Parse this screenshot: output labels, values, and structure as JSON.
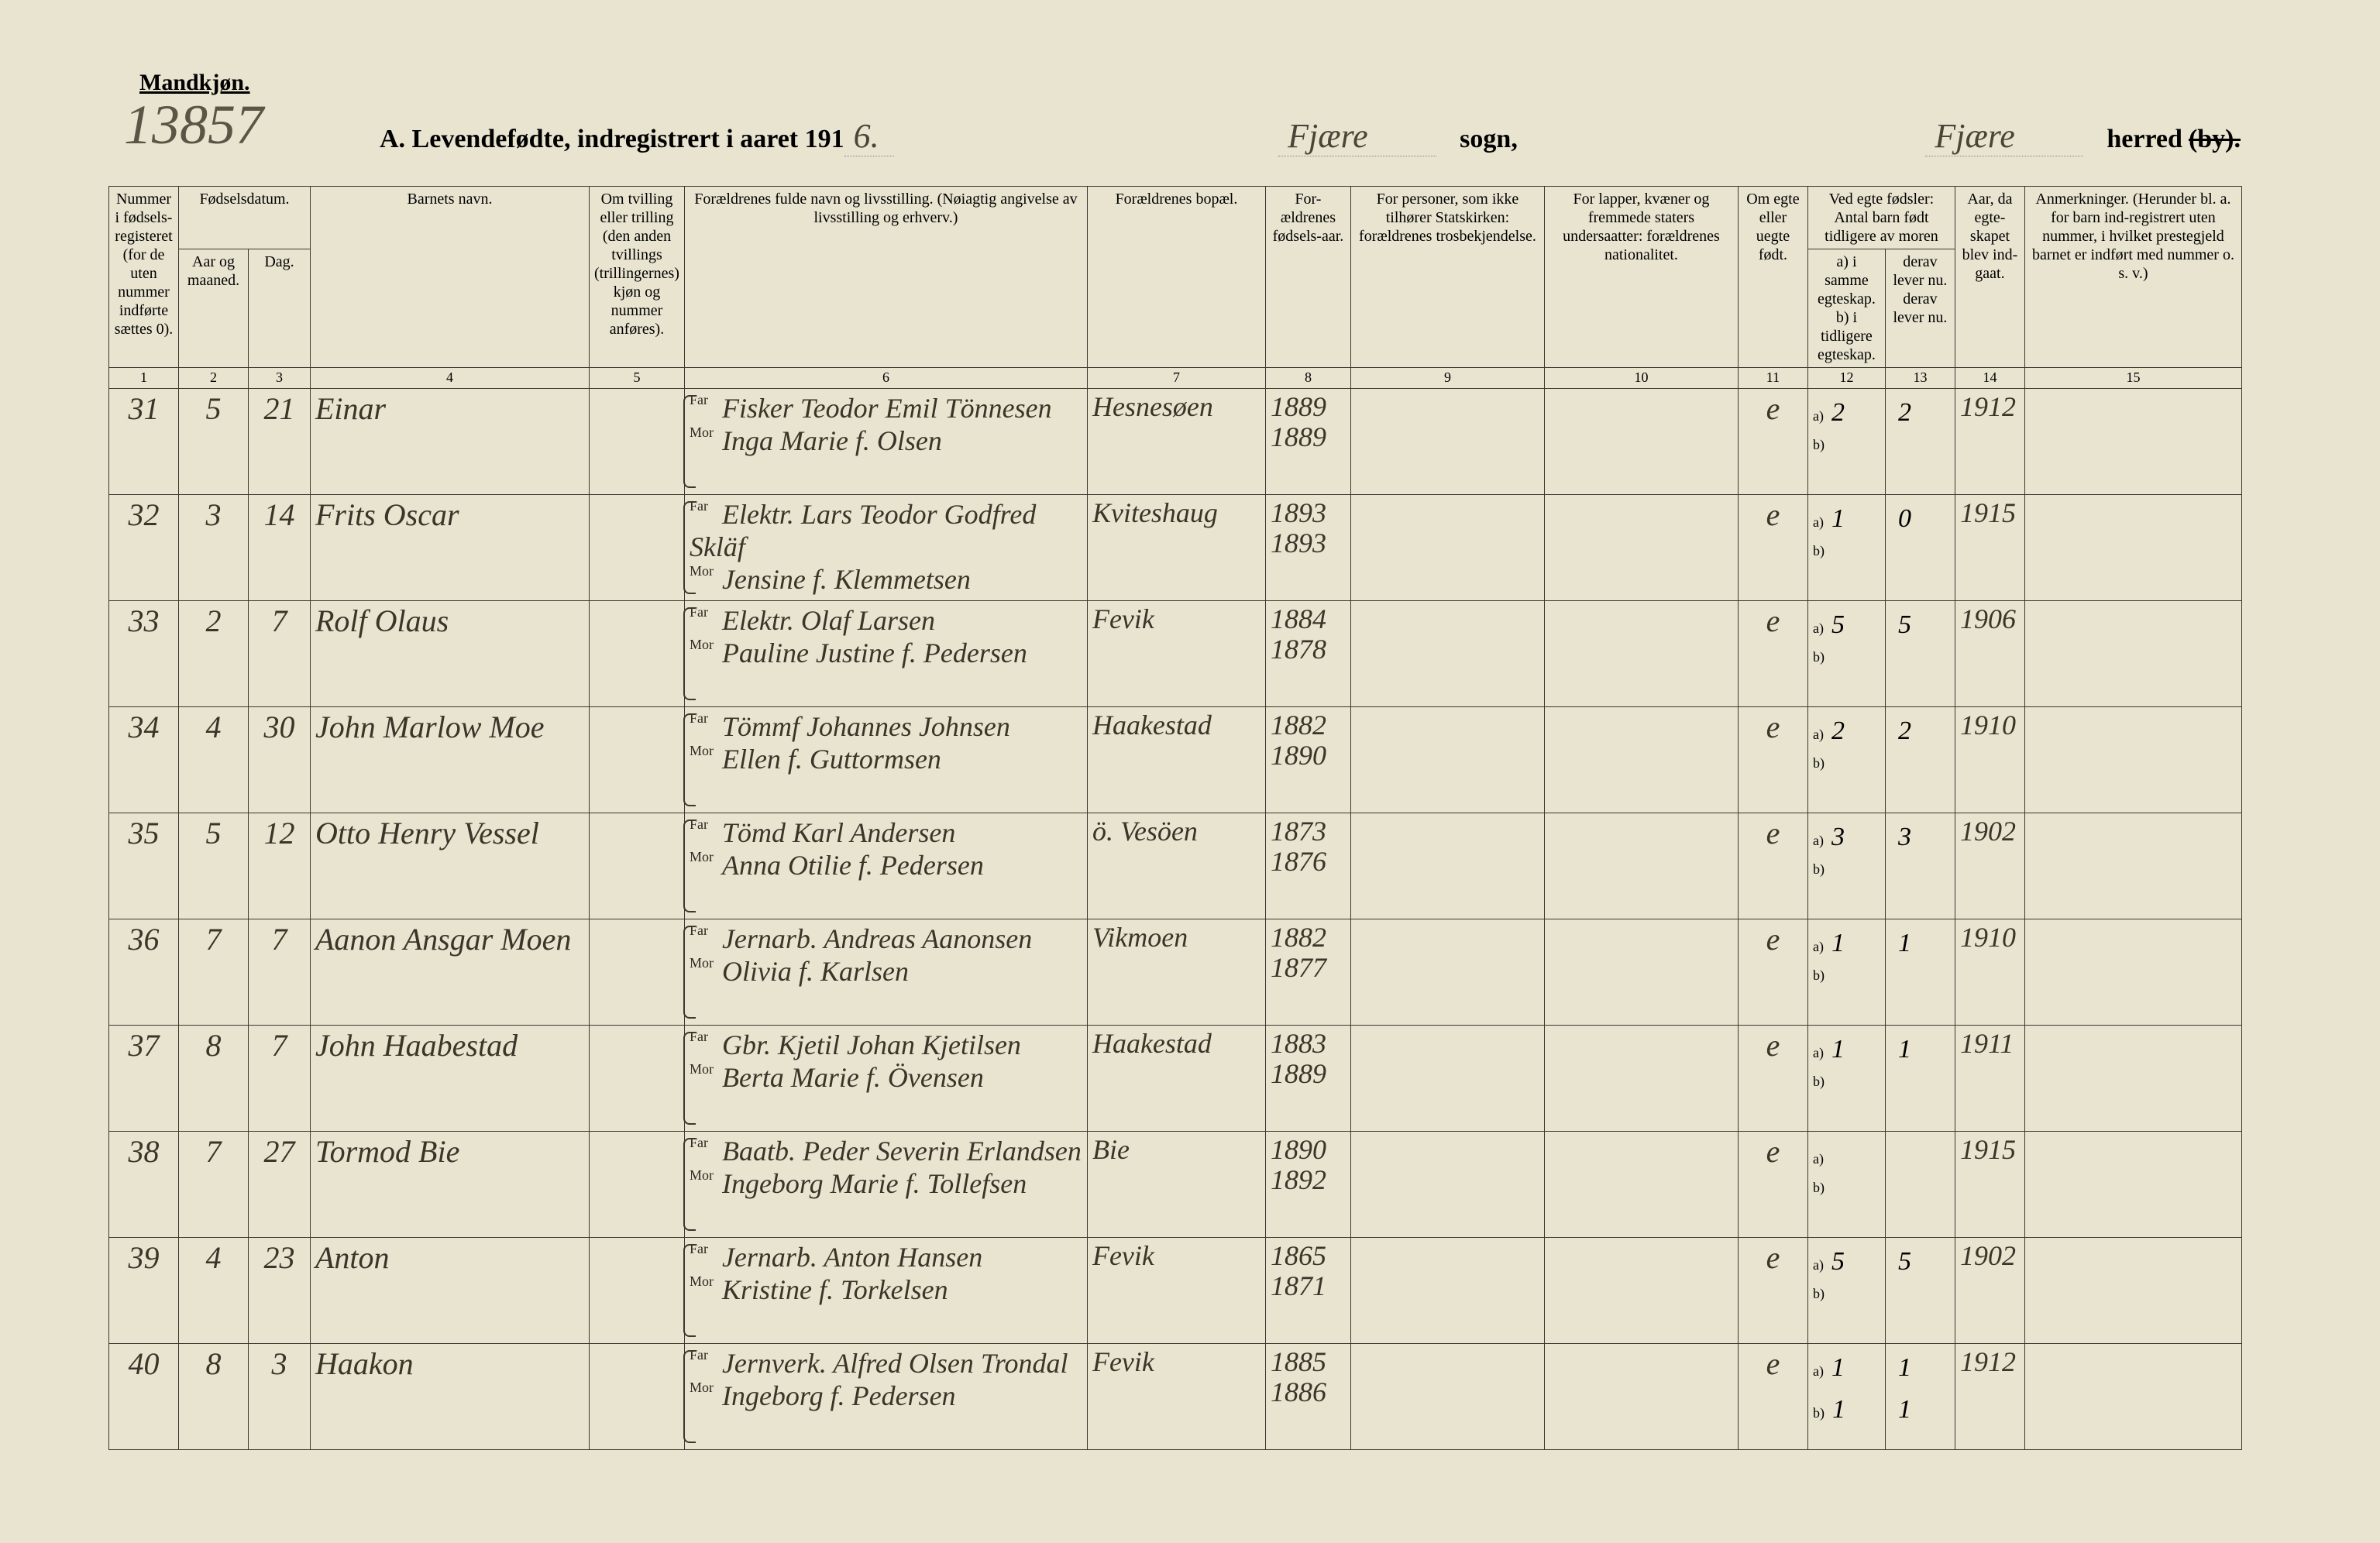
{
  "page": {
    "gender_label": "Mandkjøn.",
    "archive_number": "13857",
    "title_prefix": "A.  Levendefødte, indregistrert i aaret 191",
    "year_suffix": "6.",
    "sogn_value": "Fjære",
    "sogn_label": "sogn,",
    "herred_value": "Fjære",
    "herred_label": "herred",
    "by_label": "(by)."
  },
  "columns": {
    "c1": "Nummer i fødsels-registeret (for de uten nummer indførte sættes 0).",
    "c2_group": "Fødselsdatum.",
    "c2a": "Aar og maaned.",
    "c2b": "Dag.",
    "c4": "Barnets navn.",
    "c5": "Om tvilling eller trilling (den anden tvillings (trillingernes) kjøn og nummer anføres).",
    "c6": "Forældrenes fulde navn og livsstilling. (Nøiagtig angivelse av livsstilling og erhverv.)",
    "c7": "Forældrenes bopæl.",
    "c8": "For-ældrenes fødsels-aar.",
    "c9": "For personer, som ikke tilhører Statskirken: forældrenes trosbekjendelse.",
    "c10": "For lapper, kvæner og fremmede staters undersaatter: forældrenes nationalitet.",
    "c11": "Om egte eller uegte født.",
    "c12_group": "Ved egte fødsler: Antal barn født tidligere av moren",
    "c12a": "a) i samme egteskap. b) i tidligere egteskap.",
    "c12b": "derav lever nu. derav lever nu.",
    "c14": "Aar, da egte-skapet blev ind-gaat.",
    "c15": "Anmerkninger. (Herunder bl. a. for barn ind-registrert uten nummer, i hvilket prestegjeld barnet er indført med nummer o. s. v.)",
    "far": "Far",
    "mor": "Mor",
    "a_label": "a)",
    "b_label": "b)",
    "nums": [
      "1",
      "2",
      "3",
      "4",
      "5",
      "6",
      "7",
      "8",
      "9",
      "10",
      "11",
      "12",
      "13",
      "14",
      "15"
    ]
  },
  "rows": [
    {
      "num": "31",
      "mon": "5",
      "day": "21",
      "child": "Einar",
      "far": "Fisker Teodor Emil Tönnesen",
      "mor": "Inga Marie f. Olsen",
      "bopel": "Hesnesøen",
      "yr_far": "1889",
      "yr_mor": "1889",
      "egte": "e",
      "born_a": "2",
      "live_a": "2",
      "marriage": "1912"
    },
    {
      "num": "32",
      "mon": "3",
      "day": "14",
      "child": "Frits Oscar",
      "far": "Elektr. Lars Teodor Godfred Skläf",
      "mor": "Jensine f. Klemmetsen",
      "bopel": "Kviteshaug",
      "yr_far": "1893",
      "yr_mor": "1893",
      "egte": "e",
      "born_a": "1",
      "live_a": "0",
      "marriage": "1915"
    },
    {
      "num": "33",
      "mon": "2",
      "day": "7",
      "child": "Rolf Olaus",
      "far": "Elektr. Olaf Larsen",
      "mor": "Pauline Justine f. Pedersen",
      "bopel": "Fevik",
      "yr_far": "1884",
      "yr_mor": "1878",
      "egte": "e",
      "born_a": "5",
      "live_a": "5",
      "marriage": "1906"
    },
    {
      "num": "34",
      "mon": "4",
      "day": "30",
      "child": "John Marlow Moe",
      "far": "Tömmf Johannes Johnsen",
      "mor": "Ellen f. Guttormsen",
      "bopel": "Haakestad",
      "yr_far": "1882",
      "yr_mor": "1890",
      "egte": "e",
      "born_a": "2",
      "live_a": "2",
      "marriage": "1910"
    },
    {
      "num": "35",
      "mon": "5",
      "day": "12",
      "child": "Otto Henry Vessel",
      "far": "Tömd Karl Andersen",
      "mor": "Anna Otilie f. Pedersen",
      "bopel": "ö. Vesöen",
      "yr_far": "1873",
      "yr_mor": "1876",
      "egte": "e",
      "born_a": "3",
      "live_a": "3",
      "marriage": "1902"
    },
    {
      "num": "36",
      "mon": "7",
      "day": "7",
      "child": "Aanon Ansgar Moen",
      "far": "Jernarb. Andreas Aanonsen",
      "mor": "Olivia f. Karlsen",
      "bopel": "Vikmoen",
      "yr_far": "1882",
      "yr_mor": "1877",
      "egte": "e",
      "born_a": "1",
      "live_a": "1",
      "marriage": "1910"
    },
    {
      "num": "37",
      "mon": "8",
      "day": "7",
      "child": "John Haabestad",
      "far": "Gbr. Kjetil Johan Kjetilsen",
      "mor": "Berta Marie f. Övensen",
      "bopel": "Haakestad",
      "yr_far": "1883",
      "yr_mor": "1889",
      "egte": "e",
      "born_a": "1",
      "live_a": "1",
      "marriage": "1911"
    },
    {
      "num": "38",
      "mon": "7",
      "day": "27",
      "child": "Tormod Bie",
      "far": "Baatb. Peder Severin Erlandsen",
      "mor": "Ingeborg Marie f. Tollefsen",
      "bopel": "Bie",
      "yr_far": "1890",
      "yr_mor": "1892",
      "egte": "e",
      "born_a": "",
      "live_a": "",
      "marriage": "1915"
    },
    {
      "num": "39",
      "mon": "4",
      "day": "23",
      "child": "Anton",
      "far": "Jernarb. Anton Hansen",
      "mor": "Kristine f. Torkelsen",
      "bopel": "Fevik",
      "yr_far": "1865",
      "yr_mor": "1871",
      "egte": "e",
      "born_a": "5",
      "live_a": "5",
      "marriage": "1902"
    },
    {
      "num": "40",
      "mon": "8",
      "day": "3",
      "child": "Haakon",
      "far": "Jernverk. Alfred Olsen Trondal",
      "mor": "Ingeborg f. Pedersen",
      "bopel": "Fevik",
      "yr_far": "1885",
      "yr_mor": "1886",
      "egte": "e",
      "born_a": "1",
      "live_a": "1",
      "marriage": "1912",
      "born_b": "1",
      "live_b": "1"
    }
  ]
}
